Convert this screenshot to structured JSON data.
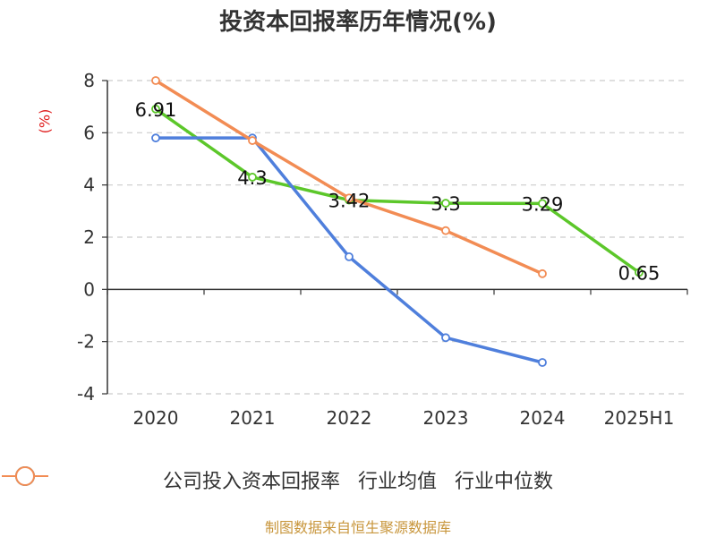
{
  "title": "投资本回报率历年情况(%)",
  "unit_label": "(%)",
  "source_label": "制图数据来自恒生聚源数据库",
  "chart_data": {
    "type": "line",
    "title": "投资本回报率历年情况(%)",
    "ylabel": "(%)",
    "categories": [
      "2020",
      "2021",
      "2022",
      "2023",
      "2024",
      "2025H1"
    ],
    "ylim": [
      -4,
      8
    ],
    "yticks": [
      -4,
      -2,
      0,
      2,
      4,
      6,
      8
    ],
    "grid": true,
    "legend_position": "bottom",
    "series": [
      {
        "name": "公司投入资本回报率",
        "color": "#5cc72a",
        "values": [
          6.91,
          4.3,
          3.42,
          3.3,
          3.29,
          0.65
        ],
        "labels": [
          "6.91",
          "4.3",
          "3.42",
          "3.3",
          "3.29",
          "0.65"
        ]
      },
      {
        "name": "行业均值",
        "color": "#4f7fdc",
        "values": [
          5.8,
          5.8,
          1.25,
          -1.85,
          -2.8,
          null
        ]
      },
      {
        "name": "行业中位数",
        "color": "#f28c54",
        "values": [
          8.0,
          5.7,
          3.5,
          2.25,
          0.6,
          null
        ]
      }
    ]
  }
}
